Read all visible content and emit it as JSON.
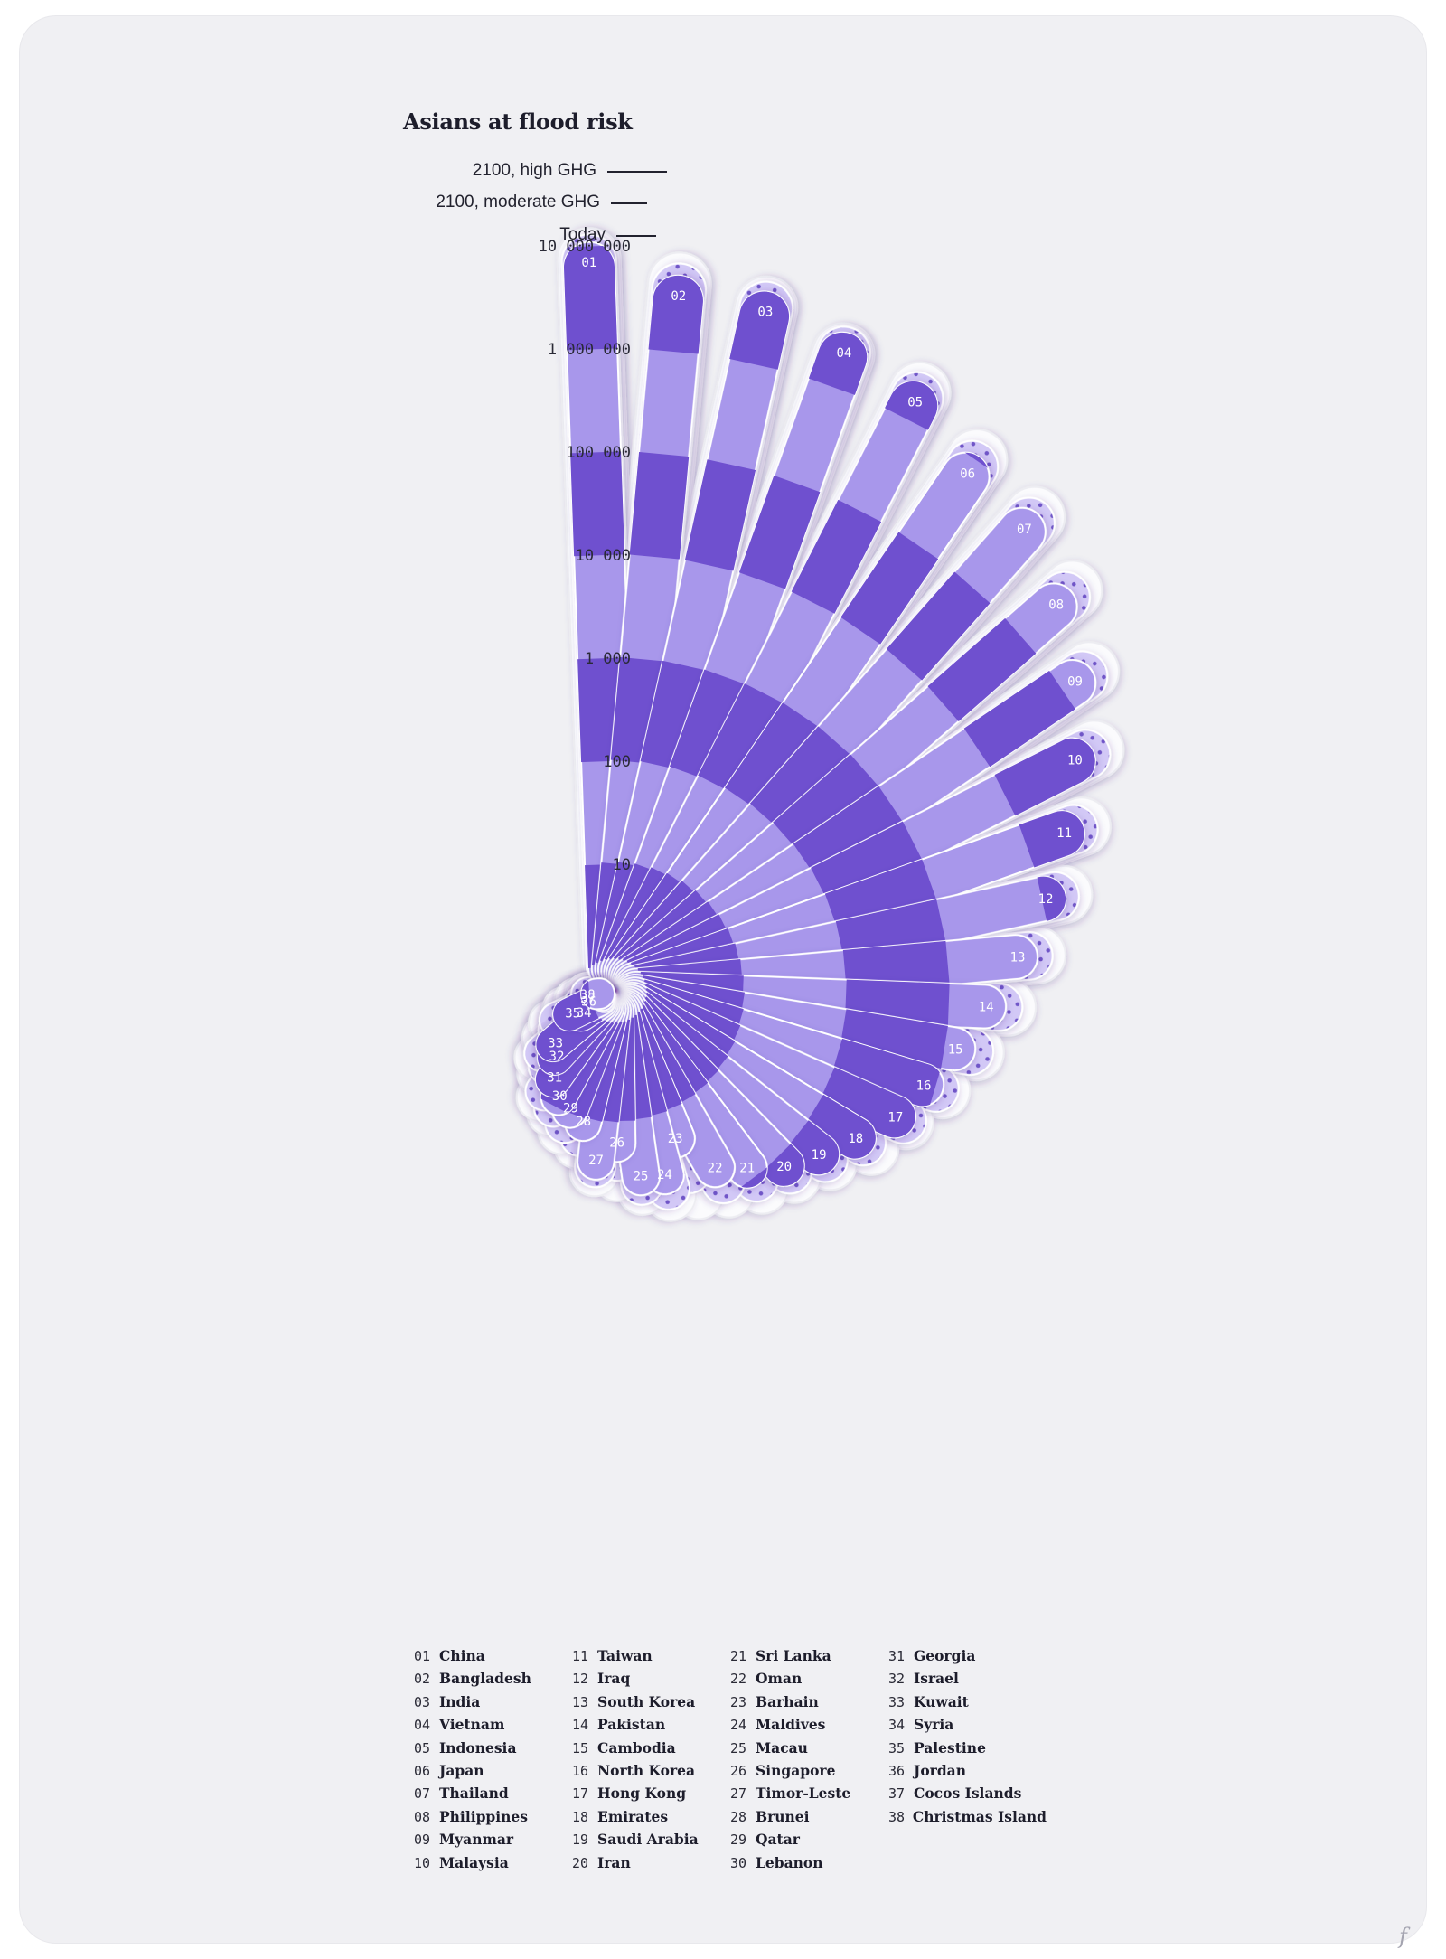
{
  "chart_data": {
    "type": "radial-bar",
    "title": "Asians at flood risk",
    "scenarios": [
      "2100, high GHG",
      "2100, moderate GHG",
      "Today"
    ],
    "scale": "log",
    "axis_ticks": [
      {
        "value": 10,
        "label": "10"
      },
      {
        "value": 100,
        "label": "100"
      },
      {
        "value": 1000,
        "label": "1 000"
      },
      {
        "value": 10000,
        "label": "10 000"
      },
      {
        "value": 100000,
        "label": "100 000"
      },
      {
        "value": 1000000,
        "label": "1 000 000"
      },
      {
        "value": 10000000,
        "label": "10 000 000"
      }
    ],
    "ylim": [
      1,
      20000000
    ],
    "countries": [
      {
        "id": "01",
        "name": "China",
        "today": 11000000,
        "moderate": 13000000,
        "high": 15000000
      },
      {
        "id": "02",
        "name": "Bangladesh",
        "today": 5500000,
        "moderate": 7200000,
        "high": 9200000
      },
      {
        "id": "03",
        "name": "India",
        "today": 5200000,
        "moderate": 6500000,
        "high": 7300000
      },
      {
        "id": "04",
        "name": "Vietnam",
        "today": 3500000,
        "moderate": 4000000,
        "high": 4300000
      },
      {
        "id": "05",
        "name": "Indonesia",
        "today": 2400000,
        "moderate": 3000000,
        "high": 3800000
      },
      {
        "id": "06",
        "name": "Japan",
        "today": 1100000,
        "moderate": 1500000,
        "high": 2000000
      },
      {
        "id": "07",
        "name": "Thailand",
        "today": 900000,
        "moderate": 1200000,
        "high": 1600000
      },
      {
        "id": "08",
        "name": "Philippines",
        "today": 450000,
        "moderate": 650000,
        "high": 900000
      },
      {
        "id": "09",
        "name": "Myanmar",
        "today": 220000,
        "moderate": 300000,
        "high": 400000
      },
      {
        "id": "10",
        "name": "Malaysia",
        "today": 90000,
        "moderate": 130000,
        "high": 180000
      },
      {
        "id": "11",
        "name": "Taiwan",
        "today": 38000,
        "moderate": 52000,
        "high": 70000
      },
      {
        "id": "12",
        "name": "Iraq",
        "today": 17000,
        "moderate": 23000,
        "high": 31000
      },
      {
        "id": "13",
        "name": "South Korea",
        "today": 7500,
        "moderate": 10500,
        "high": 14000
      },
      {
        "id": "14",
        "name": "Pakistan",
        "today": 3600,
        "moderate": 5200,
        "high": 7000
      },
      {
        "id": "15",
        "name": "Cambodia",
        "today": 2000,
        "moderate": 3000,
        "high": 3800
      },
      {
        "id": "16",
        "name": "North Korea",
        "today": 1200,
        "moderate": 1700,
        "high": 2200
      },
      {
        "id": "17",
        "name": "Hong Kong",
        "today": 850,
        "moderate": 1100,
        "high": 1300
      },
      {
        "id": "18",
        "name": "Emirates",
        "today": 480,
        "moderate": 620,
        "high": 850
      },
      {
        "id": "19",
        "name": "Saudi Arabia",
        "today": 300,
        "moderate": 380,
        "high": 480
      },
      {
        "id": "20",
        "name": "Iran",
        "today": 200,
        "moderate": 250,
        "high": 320
      },
      {
        "id": "21",
        "name": "Sri Lanka",
        "today": 120,
        "moderate": 175,
        "high": 240
      },
      {
        "id": "22",
        "name": "Oman",
        "today": 80,
        "moderate": 120,
        "high": 170
      },
      {
        "id": "23",
        "name": "Barhain",
        "today": 30,
        "moderate": 70,
        "high": 130
      },
      {
        "id": "24",
        "name": "Maldives",
        "today": 60,
        "moderate": 85,
        "high": 110
      },
      {
        "id": "25",
        "name": "Macau",
        "today": 55,
        "moderate": 68,
        "high": 85
      },
      {
        "id": "26",
        "name": "Singapore",
        "today": 25,
        "moderate": 38,
        "high": 60
      },
      {
        "id": "27",
        "name": "Timor-Leste",
        "today": 38,
        "moderate": 45,
        "high": 55
      },
      {
        "id": "28",
        "name": "Brunei",
        "today": 17,
        "moderate": 24,
        "high": 32
      },
      {
        "id": "29",
        "name": "Qatar",
        "today": 14,
        "moderate": 20,
        "high": 26
      },
      {
        "id": "30",
        "name": "Lebanon",
        "today": 12,
        "moderate": 16,
        "high": 20
      },
      {
        "id": "31",
        "name": "Georgia",
        "today": 9,
        "moderate": 13,
        "high": 17
      },
      {
        "id": "32",
        "name": "Israel",
        "today": 6,
        "moderate": 8,
        "high": 11
      },
      {
        "id": "33",
        "name": "Kuwait",
        "today": 5,
        "moderate": 7,
        "high": 9
      },
      {
        "id": "34",
        "name": "Syria",
        "today": 2,
        "moderate": 4,
        "high": 6
      },
      {
        "id": "35",
        "name": "Palestine",
        "today": 2.5,
        "moderate": 3.5,
        "high": 4.5
      },
      {
        "id": "36",
        "name": "Jordan",
        "today": 1,
        "moderate": 1.8,
        "high": 3
      },
      {
        "id": "37",
        "name": "Cocos Islands",
        "today": 1,
        "moderate": 1.5,
        "high": 2.2
      },
      {
        "id": "38",
        "name": "Christmas Island",
        "today": 1.2,
        "moderate": 1.5,
        "high": 1.7
      }
    ],
    "colors": {
      "dark_band": "#6f50cf",
      "light_band": "#a897eb",
      "moderate": "#cfc5f5",
      "high": "#fbfbfd",
      "dots": "#6f54c8",
      "background": "#f0f0f3"
    }
  }
}
